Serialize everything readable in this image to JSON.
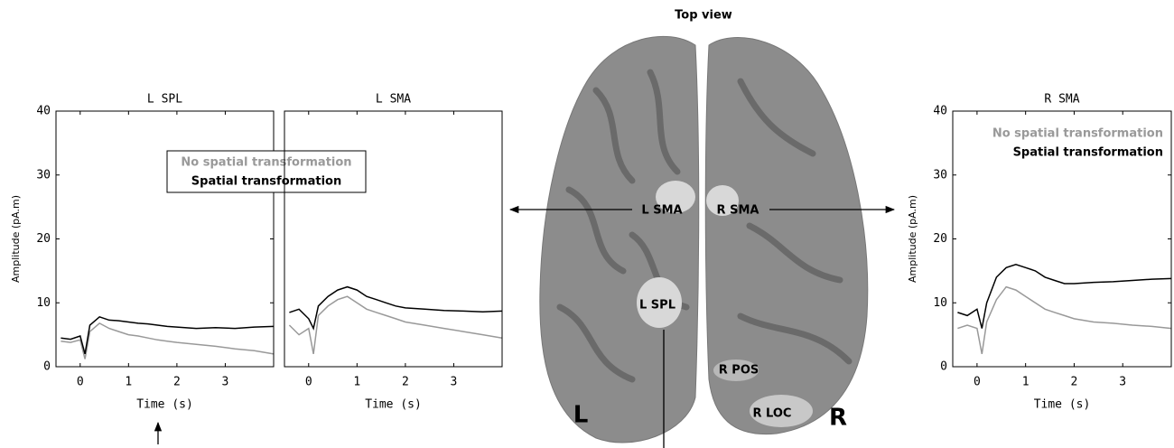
{
  "chart_data": [
    {
      "type": "line",
      "title": "L SPL",
      "xlabel": "Time (s)",
      "ylabel": "Amplitude (pA.m)",
      "x": [
        -0.4,
        -0.2,
        0,
        0.1,
        0.2,
        0.4,
        0.6,
        0.8,
        1.0,
        1.2,
        1.4,
        1.6,
        1.8,
        2.0,
        2.4,
        2.8,
        3.2,
        3.6,
        4.0
      ],
      "xlim": [
        -0.5,
        4
      ],
      "ylim": [
        0,
        40
      ],
      "xticks": [
        0,
        1,
        2,
        3
      ],
      "yticks": [
        0,
        10,
        20,
        30,
        40
      ],
      "legend": "upper right",
      "legend_frame": true,
      "series": [
        {
          "name": "No spatial transformation",
          "color": "#999999",
          "values": [
            4.0,
            3.8,
            4.2,
            1.2,
            5.5,
            6.8,
            6.0,
            5.5,
            5.0,
            4.8,
            4.5,
            4.2,
            4.0,
            3.8,
            3.5,
            3.2,
            2.8,
            2.5,
            2.0
          ]
        },
        {
          "name": "Spatial transformation",
          "color": "#000000",
          "values": [
            4.5,
            4.3,
            4.8,
            2.0,
            6.5,
            7.8,
            7.3,
            7.2,
            7.0,
            6.8,
            6.7,
            6.5,
            6.3,
            6.2,
            6.0,
            6.1,
            6.0,
            6.2,
            6.3
          ]
        }
      ]
    },
    {
      "type": "line",
      "title": "L SMA",
      "xlabel": "Time (s)",
      "x": [
        -0.4,
        -0.2,
        0,
        0.1,
        0.2,
        0.4,
        0.6,
        0.8,
        1.0,
        1.2,
        1.4,
        1.6,
        1.8,
        2.0,
        2.4,
        2.8,
        3.2,
        3.6,
        4.0
      ],
      "xlim": [
        -0.5,
        4
      ],
      "ylim": [
        0,
        40
      ],
      "xticks": [
        0,
        1,
        2,
        3
      ],
      "series": [
        {
          "color": "#999999",
          "values": [
            6.5,
            5.0,
            6.0,
            2.0,
            8.0,
            9.5,
            10.5,
            11.0,
            10.0,
            9.0,
            8.5,
            8.0,
            7.5,
            7.0,
            6.5,
            6.0,
            5.5,
            5.0,
            4.5
          ]
        },
        {
          "color": "#000000",
          "values": [
            8.5,
            9.0,
            7.5,
            6.0,
            9.5,
            11.0,
            12.0,
            12.5,
            12.0,
            11.0,
            10.5,
            10.0,
            9.5,
            9.2,
            9.0,
            8.8,
            8.7,
            8.6,
            8.7
          ]
        }
      ]
    },
    {
      "type": "line",
      "title": "R SMA",
      "xlabel": "Time (s)",
      "ylabel": "Amplitude (pA.m)",
      "x": [
        -0.4,
        -0.2,
        0,
        0.1,
        0.2,
        0.4,
        0.6,
        0.8,
        1.0,
        1.2,
        1.4,
        1.6,
        1.8,
        2.0,
        2.4,
        2.8,
        3.2,
        3.6,
        4.0
      ],
      "xlim": [
        -0.5,
        4
      ],
      "ylim": [
        0,
        40
      ],
      "xticks": [
        0,
        1,
        2,
        3
      ],
      "yticks": [
        0,
        10,
        20,
        30,
        40
      ],
      "legend": "upper right",
      "legend_frame": false,
      "series": [
        {
          "name": "No spatial transformation",
          "color": "#999999",
          "values": [
            6.0,
            6.5,
            6.0,
            2.0,
            7.0,
            10.5,
            12.5,
            12.0,
            11.0,
            10.0,
            9.0,
            8.5,
            8.0,
            7.5,
            7.0,
            6.8,
            6.5,
            6.3,
            6.0
          ]
        },
        {
          "name": "Spatial transformation",
          "color": "#000000",
          "values": [
            8.5,
            8.0,
            9.0,
            6.0,
            10.0,
            14.0,
            15.5,
            16.0,
            15.5,
            15.0,
            14.0,
            13.5,
            13.0,
            13.0,
            13.2,
            13.3,
            13.5,
            13.7,
            13.8
          ]
        }
      ]
    }
  ],
  "brain": {
    "title": "Top view",
    "regions": [
      "L SMA",
      "R SMA",
      "L SPL",
      "R POS",
      "R LOC"
    ],
    "sides": [
      "L",
      "R"
    ]
  }
}
